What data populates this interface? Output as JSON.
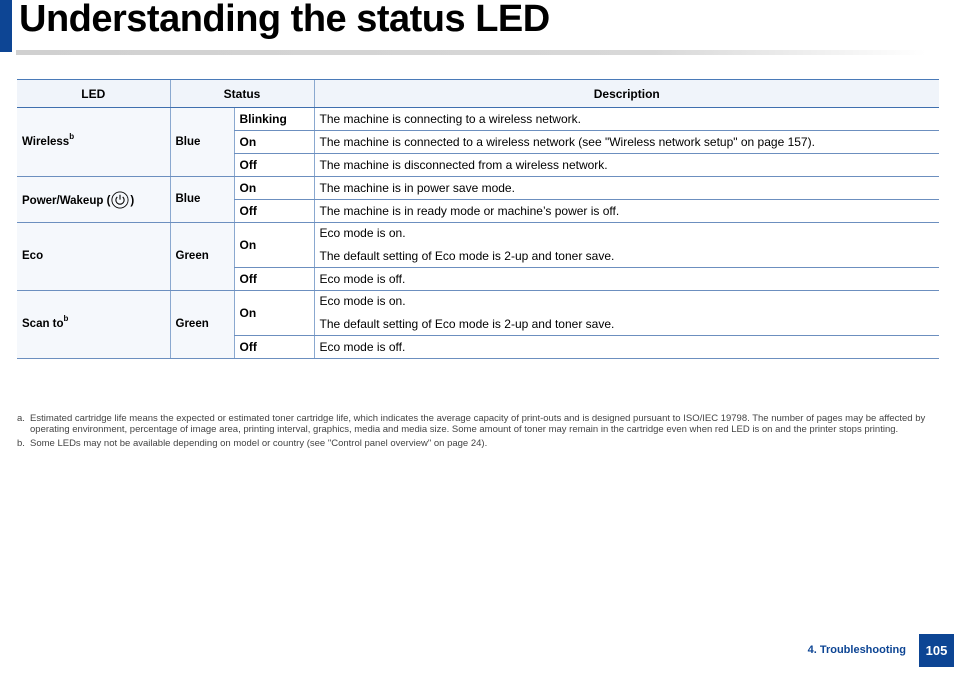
{
  "page": {
    "title": "Understanding the status LED",
    "section": "4. Troubleshooting",
    "number": "105"
  },
  "colors": {
    "accent": "#0d4594",
    "header_bg": "#f0f4fa",
    "rule": "#6c8fbf"
  },
  "table": {
    "headers": {
      "led": "LED",
      "status": "Status",
      "description": "Description"
    },
    "groups": [
      {
        "led": "Wireless",
        "sup": "b",
        "status": "Blue",
        "rows": [
          {
            "state": "Blinking",
            "desc": [
              "The machine is connecting to a wireless network."
            ]
          },
          {
            "state": "On",
            "desc": [
              "The machine is connected to a wireless network (see \"Wireless network setup\" on page 157)."
            ]
          },
          {
            "state": "Off",
            "desc": [
              "The machine is disconnected from a wireless network."
            ]
          }
        ]
      },
      {
        "led": "Power/Wakeup (",
        "led_suffix": ")",
        "icon": "power-icon",
        "status": "Blue",
        "rows": [
          {
            "state": "On",
            "desc": [
              "The machine is in power save mode."
            ]
          },
          {
            "state": "Off",
            "desc": [
              "The machine is in ready mode or machine’s power is off."
            ]
          }
        ]
      },
      {
        "led": "Eco",
        "status": "Green",
        "rows": [
          {
            "state": "On",
            "desc": [
              "Eco mode is on.",
              "The default setting of Eco mode is 2-up and toner save."
            ]
          },
          {
            "state": "Off",
            "desc": [
              "Eco mode is off."
            ]
          }
        ]
      },
      {
        "led": "Scan to",
        "sup": "b",
        "status": "Green",
        "rows": [
          {
            "state": "On",
            "desc": [
              "Eco mode is on.",
              "The default setting of Eco mode is 2-up and toner save."
            ]
          },
          {
            "state": "Off",
            "desc": [
              "Eco mode is off."
            ]
          }
        ]
      }
    ]
  },
  "footnotes": [
    {
      "mark": "a.",
      "text": "Estimated cartridge life means the expected or estimated toner cartridge life, which indicates the average capacity of print-outs and is designed pursuant to ISO/IEC 19798. The number of pages may be affected by operating environment, percentage of image area, printing interval, graphics, media and media size. Some amount of toner may remain in the cartridge even when red LED is on and the printer stops printing."
    },
    {
      "mark": "b.",
      "text": "Some LEDs may not be available depending on model or country (see \"Control panel overview\" on page 24)."
    }
  ]
}
